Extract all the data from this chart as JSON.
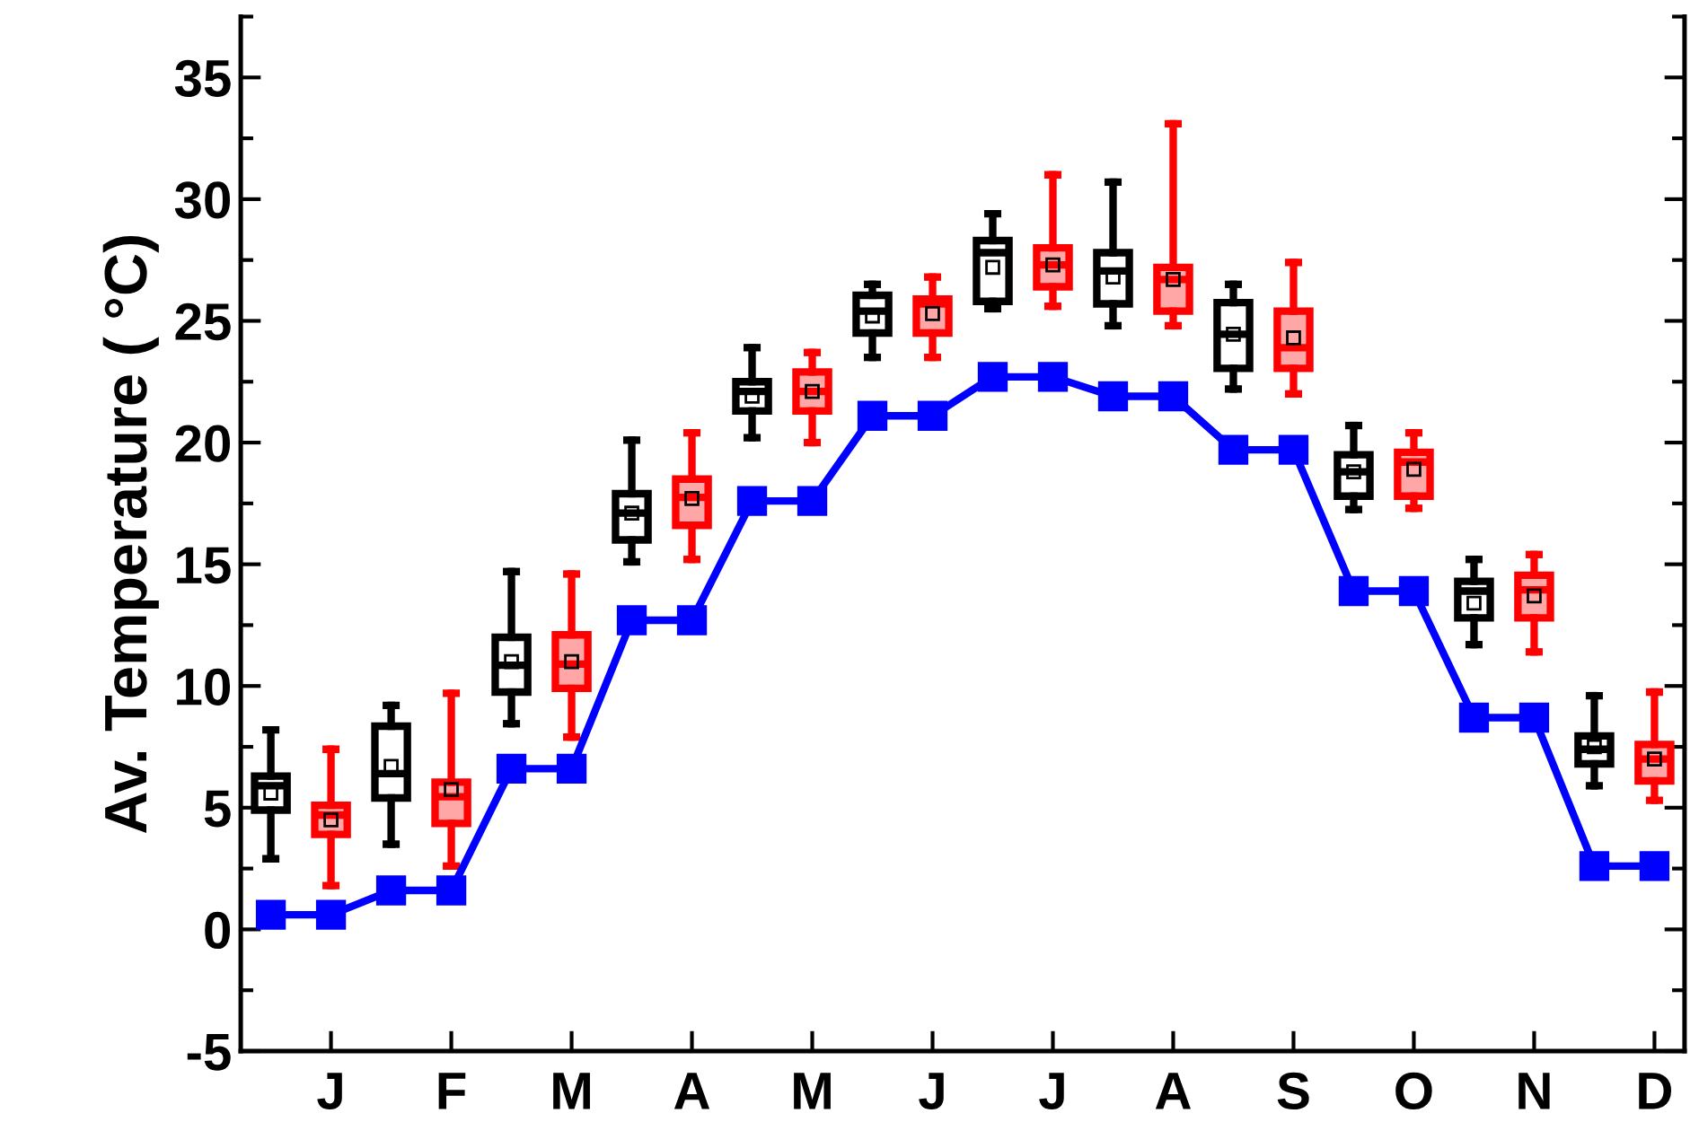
{
  "chart_data": {
    "type": "box",
    "ylabel": "Av. Temperature ( °C)",
    "categories": [
      null,
      "J",
      null,
      "F",
      null,
      "M",
      null,
      "A",
      null,
      "M",
      null,
      "J",
      null,
      "J",
      null,
      "A",
      null,
      "S",
      null,
      "O",
      null,
      "N",
      null,
      "D"
    ],
    "ylim": [
      -5,
      37.5
    ],
    "yticks": [
      -5,
      0,
      5,
      10,
      15,
      20,
      25,
      30,
      35
    ],
    "series": [
      {
        "color": "#000000",
        "boxes": [
          {
            "low": 2.9,
            "q1": 4.9,
            "median": 5.9,
            "q3": 6.3,
            "high": 8.2,
            "mean": 5.6
          },
          null,
          {
            "low": 3.5,
            "q1": 5.4,
            "median": 6.4,
            "q3": 8.35,
            "high": 9.2,
            "mean": 6.7
          },
          null,
          {
            "low": 8.45,
            "q1": 9.75,
            "median": 10.85,
            "q3": 12.0,
            "high": 14.7,
            "mean": 11.0
          },
          null,
          {
            "low": 15.1,
            "q1": 16.0,
            "median": 17.1,
            "q3": 17.9,
            "high": 20.1,
            "mean": 17.1
          },
          null,
          {
            "low": 20.2,
            "q1": 21.3,
            "median": 22.1,
            "q3": 22.5,
            "high": 23.9,
            "mean": 21.9
          },
          null,
          {
            "low": 23.5,
            "q1": 24.5,
            "median": 25.4,
            "q3": 26.05,
            "high": 26.5,
            "mean": 25.2
          },
          null,
          {
            "low": 25.5,
            "q1": 25.8,
            "median": 27.8,
            "q3": 28.3,
            "high": 29.4,
            "mean": 27.2
          },
          null,
          {
            "low": 24.8,
            "q1": 25.7,
            "median": 27.05,
            "q3": 27.8,
            "high": 30.7,
            "mean": 26.8
          },
          null,
          {
            "low": 22.2,
            "q1": 23.05,
            "median": 24.45,
            "q3": 25.75,
            "high": 26.5,
            "mean": 24.45
          },
          null,
          {
            "low": 17.25,
            "q1": 17.8,
            "median": 18.8,
            "q3": 19.5,
            "high": 20.7,
            "mean": 18.8
          },
          null,
          {
            "low": 11.7,
            "q1": 12.8,
            "median": 13.9,
            "q3": 14.3,
            "high": 15.2,
            "mean": 13.4
          },
          null,
          {
            "low": 5.9,
            "q1": 6.8,
            "median": 7.4,
            "q3": 7.95,
            "high": 9.6,
            "mean": 7.5
          },
          null
        ]
      },
      {
        "color": "#ff0000",
        "boxes": [
          null,
          {
            "low": 1.8,
            "q1": 3.9,
            "median": 4.7,
            "q3": 5.1,
            "high": 7.4,
            "mean": 4.5
          },
          null,
          {
            "low": 2.6,
            "q1": 4.35,
            "median": 5.45,
            "q3": 6.05,
            "high": 9.7,
            "mean": 5.75
          },
          null,
          {
            "low": 7.9,
            "q1": 9.9,
            "median": 10.9,
            "q3": 12.1,
            "high": 14.6,
            "mean": 11.0
          },
          null,
          {
            "low": 15.2,
            "q1": 16.6,
            "median": 17.75,
            "q3": 18.5,
            "high": 20.4,
            "mean": 17.7
          },
          null,
          {
            "low": 20.0,
            "q1": 21.3,
            "median": 22.1,
            "q3": 22.9,
            "high": 23.7,
            "mean": 22.1
          },
          null,
          {
            "low": 23.5,
            "q1": 24.5,
            "median": 25.7,
            "q3": 25.9,
            "high": 26.8,
            "mean": 25.3
          },
          null,
          {
            "low": 25.6,
            "q1": 26.4,
            "median": 27.3,
            "q3": 28.0,
            "high": 31.0,
            "mean": 27.3
          },
          null,
          {
            "low": 24.8,
            "q1": 25.4,
            "median": 26.7,
            "q3": 27.2,
            "high": 33.1,
            "mean": 26.7
          },
          null,
          {
            "low": 22.0,
            "q1": 23.05,
            "median": 23.9,
            "q3": 25.4,
            "high": 27.4,
            "mean": 24.3
          },
          null,
          {
            "low": 17.3,
            "q1": 17.8,
            "median": 19.2,
            "q3": 19.6,
            "high": 20.4,
            "mean": 18.9
          },
          null,
          {
            "low": 11.4,
            "q1": 12.8,
            "median": 13.95,
            "q3": 14.55,
            "high": 15.4,
            "mean": 13.7
          },
          null,
          {
            "low": 5.3,
            "q1": 6.1,
            "median": 7.0,
            "q3": 7.6,
            "high": 9.75,
            "mean": 7.0
          }
        ]
      },
      {
        "type": "line",
        "color": "#0000ff",
        "marker": "square",
        "line_style": "solid",
        "values": [
          0.6,
          0.6,
          1.6,
          1.6,
          6.6,
          6.6,
          12.7,
          12.7,
          17.6,
          17.6,
          21.1,
          21.1,
          22.7,
          22.7,
          21.9,
          21.9,
          19.7,
          19.7,
          13.9,
          13.9,
          8.7,
          8.7,
          2.6,
          2.6
        ]
      }
    ]
  }
}
